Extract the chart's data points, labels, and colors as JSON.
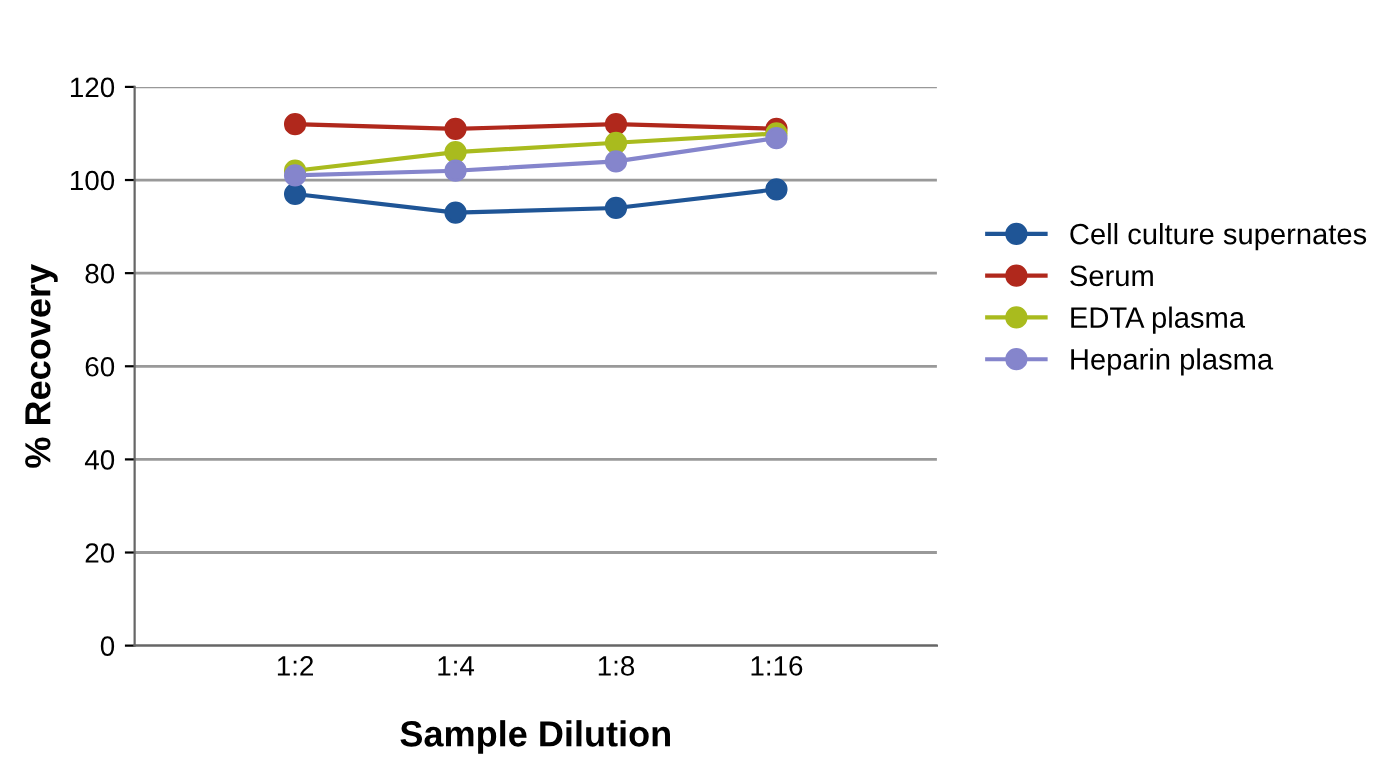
{
  "chart_data": {
    "type": "line",
    "xlabel": "Sample Dilution",
    "ylabel": "% Recovery",
    "categories": [
      "1:2",
      "1:4",
      "1:8",
      "1:16"
    ],
    "series": [
      {
        "name": "Cell culture supernates",
        "color": "#1f5596",
        "values": [
          97,
          93,
          94,
          98
        ]
      },
      {
        "name": "Serum",
        "color": "#b0281c",
        "values": [
          112,
          111,
          112,
          111
        ]
      },
      {
        "name": "EDTA plasma",
        "color": "#a9bb1e",
        "values": [
          102,
          106,
          108,
          110
        ]
      },
      {
        "name": "Heparin plasma",
        "color": "#8585cc",
        "values": [
          101,
          102,
          104,
          109
        ]
      }
    ],
    "ylim": [
      0,
      120
    ],
    "yticks": [
      0,
      20,
      40,
      60,
      80,
      100,
      120
    ],
    "grid": "y",
    "legend": "right",
    "marker": "circle",
    "line_style": "solid"
  }
}
